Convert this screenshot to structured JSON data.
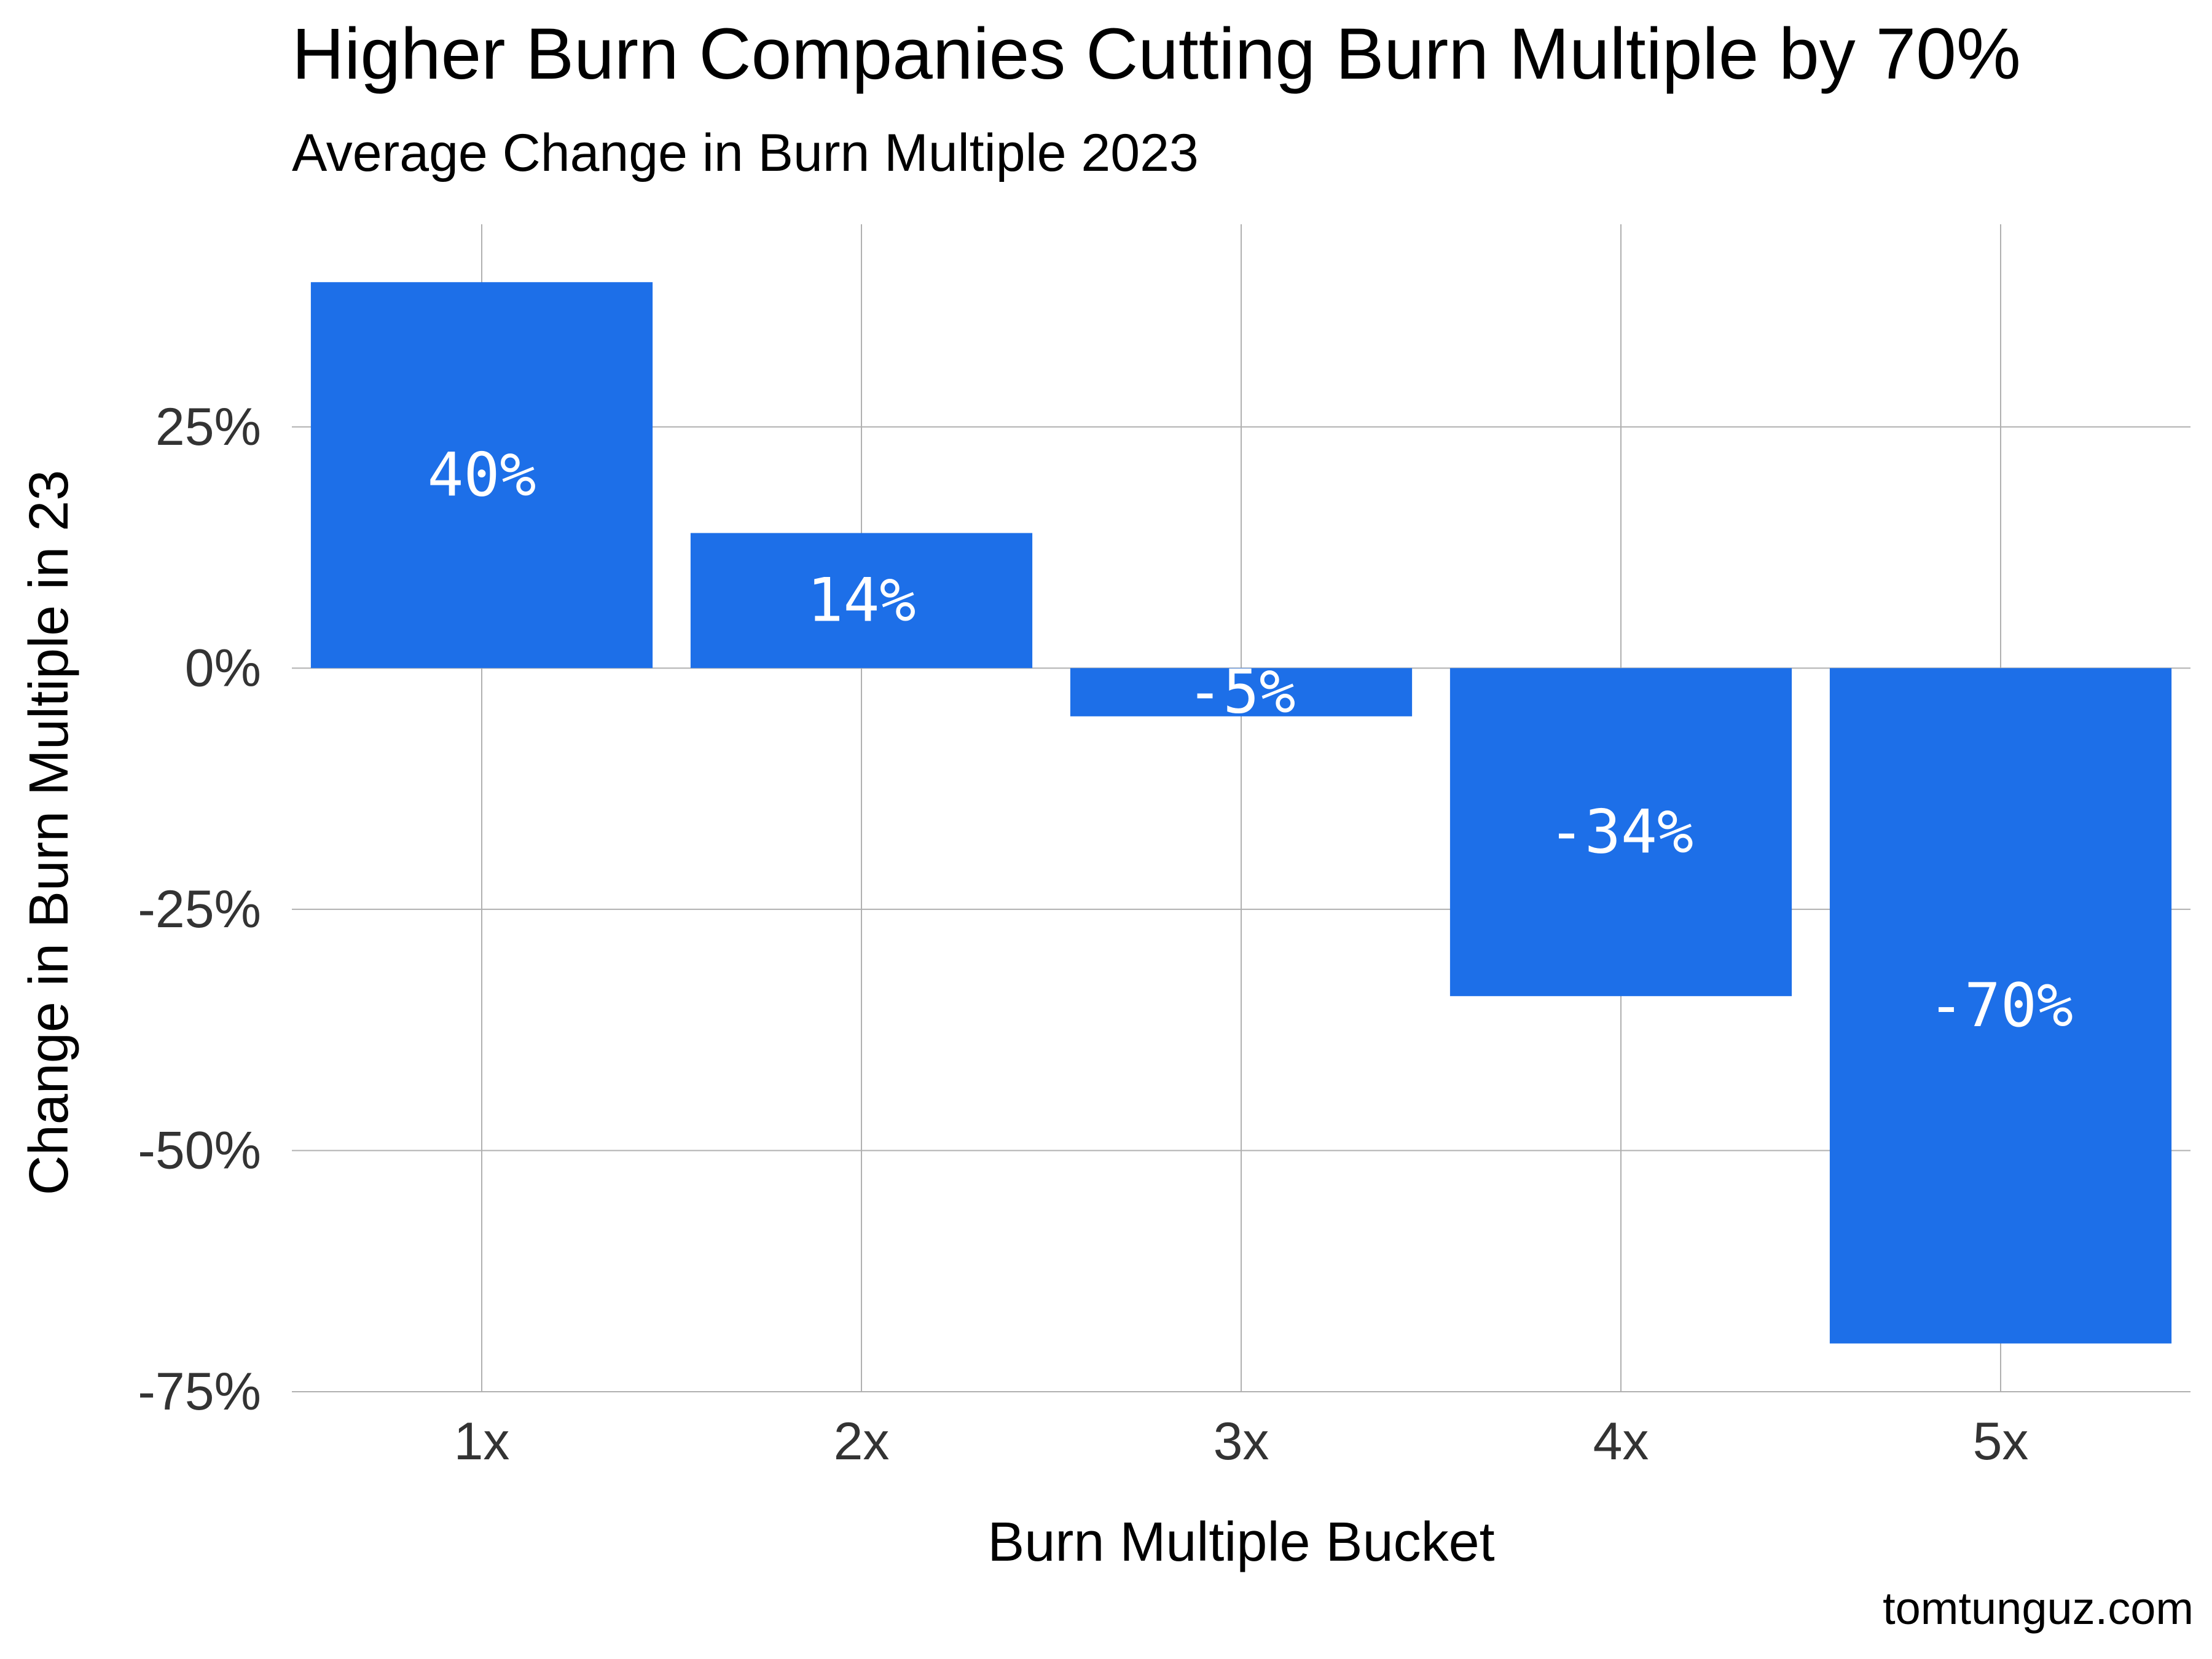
{
  "title": "Higher Burn Companies Cutting Burn Multiple by 70%",
  "subtitle": "Average Change in Burn Multiple 2023",
  "credit": "tomtunguz.com",
  "colors": {
    "bar": "#1d6fe8",
    "grid": "#b0b0b0",
    "tick_text": "#333333",
    "background": "#ffffff"
  },
  "chart_data": {
    "type": "bar",
    "categories": [
      "1x",
      "2x",
      "3x",
      "4x",
      "5x"
    ],
    "values": [
      40,
      14,
      -5,
      -34,
      -70
    ],
    "value_labels": [
      "40%",
      "14%",
      "-5%",
      "-34%",
      "-70%"
    ],
    "xlabel": "Burn Multiple Bucket",
    "ylabel": "Change in Burn Multiple in 23",
    "ylim": [
      -75,
      46
    ],
    "yticks": [
      25,
      0,
      -25,
      -50,
      -75
    ],
    "ytick_labels": [
      "25%",
      "0%",
      "-25%",
      "-50%",
      "-75%"
    ],
    "grid": true,
    "legend": "none"
  }
}
